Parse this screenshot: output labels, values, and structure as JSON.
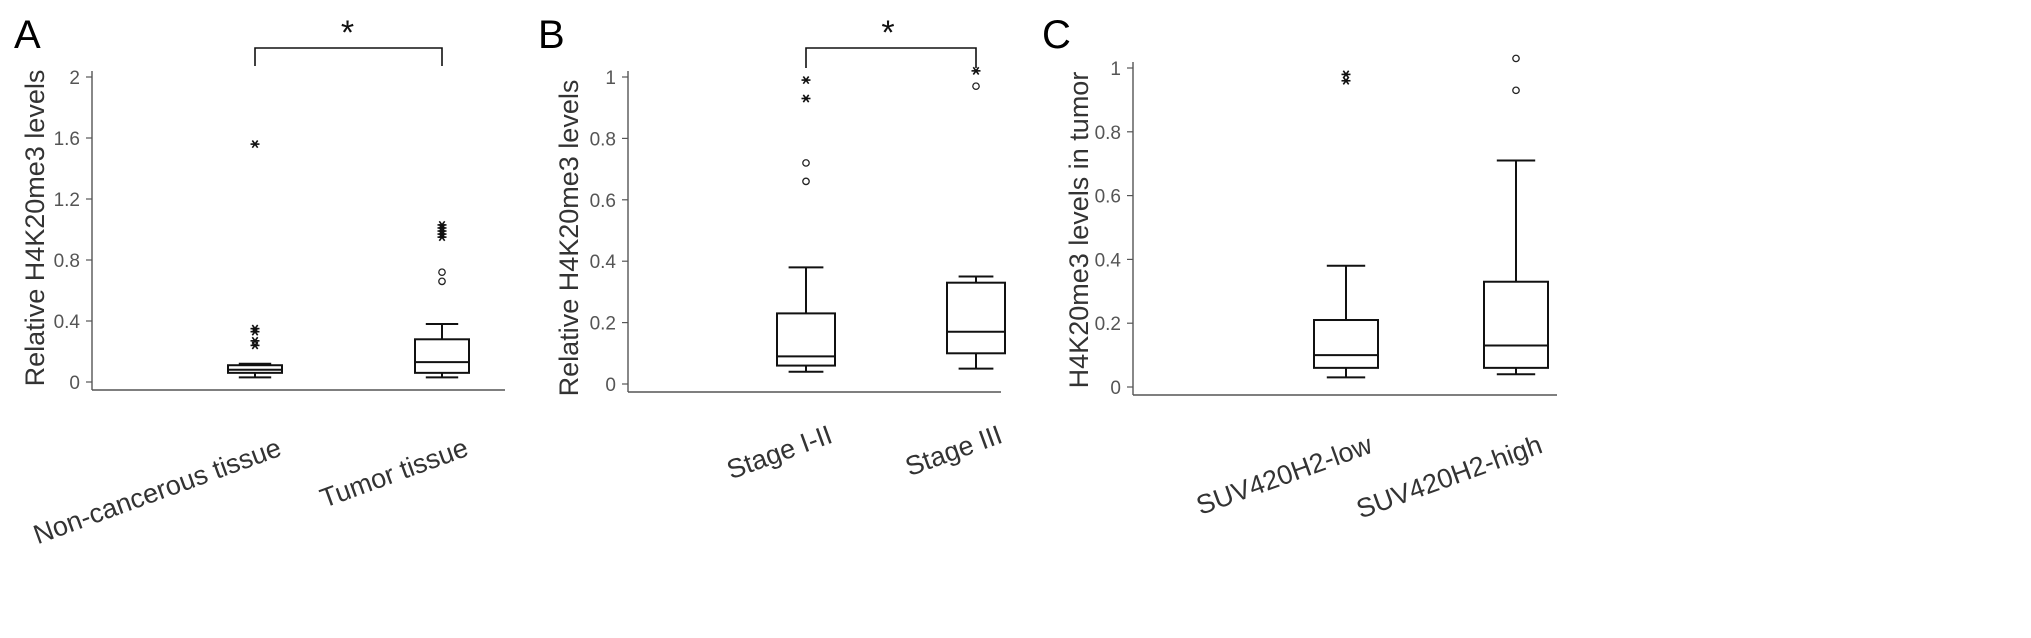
{
  "figure": {
    "background": "#ffffff",
    "ink_color": "#111111",
    "axis_color": "#555555"
  },
  "chart_data": [
    {
      "panel": "A",
      "type": "box",
      "ylabel": "Relative H4K20me3 levels",
      "ylim": [
        0,
        2
      ],
      "yticks": [
        0,
        0.4,
        0.8,
        1.2,
        1.6,
        2
      ],
      "ytick_labels": [
        "0",
        "0.4",
        "0.8",
        "1.2",
        "1.6",
        "2"
      ],
      "categories": [
        "Non-cancerous tissue",
        "Tumor tissue"
      ],
      "boxes": [
        {
          "whisker_low": 0.03,
          "q1": 0.06,
          "median": 0.08,
          "q3": 0.11,
          "whisker_high": 0.12,
          "outliers": [],
          "extremes": [
            0.24,
            0.27,
            0.33,
            0.35,
            1.56
          ]
        },
        {
          "whisker_low": 0.03,
          "q1": 0.06,
          "median": 0.13,
          "q3": 0.28,
          "whisker_high": 0.38,
          "outliers": [
            0.66,
            0.72
          ],
          "extremes": [
            0.95,
            0.97,
            0.99,
            1.01,
            1.03
          ]
        }
      ],
      "significance": {
        "from": 0,
        "to": 1,
        "label": "*"
      }
    },
    {
      "panel": "B",
      "type": "box",
      "ylabel": "Relative H4K20me3 levels",
      "ylim": [
        0,
        1
      ],
      "yticks": [
        0,
        0.2,
        0.4,
        0.6,
        0.8,
        1
      ],
      "ytick_labels": [
        "0",
        "0.2",
        "0.4",
        "0.6",
        "0.8",
        "1"
      ],
      "categories": [
        "Stage I-II",
        "Stage III"
      ],
      "boxes": [
        {
          "whisker_low": 0.04,
          "q1": 0.06,
          "median": 0.09,
          "q3": 0.23,
          "whisker_high": 0.38,
          "outliers": [
            0.66,
            0.72
          ],
          "extremes": [
            0.93,
            0.99
          ]
        },
        {
          "whisker_low": 0.05,
          "q1": 0.1,
          "median": 0.17,
          "q3": 0.33,
          "whisker_high": 0.35,
          "outliers": [
            0.97
          ],
          "extremes": [
            1.02
          ]
        }
      ],
      "significance": {
        "from": 0,
        "to": 1,
        "label": "*"
      }
    },
    {
      "panel": "C",
      "type": "box",
      "ylabel": "H4K20me3 levels  in tumor",
      "ylim": [
        0,
        1
      ],
      "yticks": [
        0,
        0.2,
        0.4,
        0.6,
        0.8,
        1
      ],
      "ytick_labels": [
        "0",
        "0.2",
        "0.4",
        "0.6",
        "0.8",
        "1"
      ],
      "categories": [
        "SUV420H2-low",
        "SUV420H2-high"
      ],
      "boxes": [
        {
          "whisker_low": 0.03,
          "q1": 0.06,
          "median": 0.1,
          "q3": 0.21,
          "whisker_high": 0.38,
          "outliers": [],
          "extremes": [
            0.96,
            0.98
          ]
        },
        {
          "whisker_low": 0.04,
          "q1": 0.06,
          "median": 0.13,
          "q3": 0.33,
          "whisker_high": 0.71,
          "outliers": [
            0.93,
            1.03
          ],
          "extremes": []
        }
      ],
      "significance": null
    }
  ]
}
